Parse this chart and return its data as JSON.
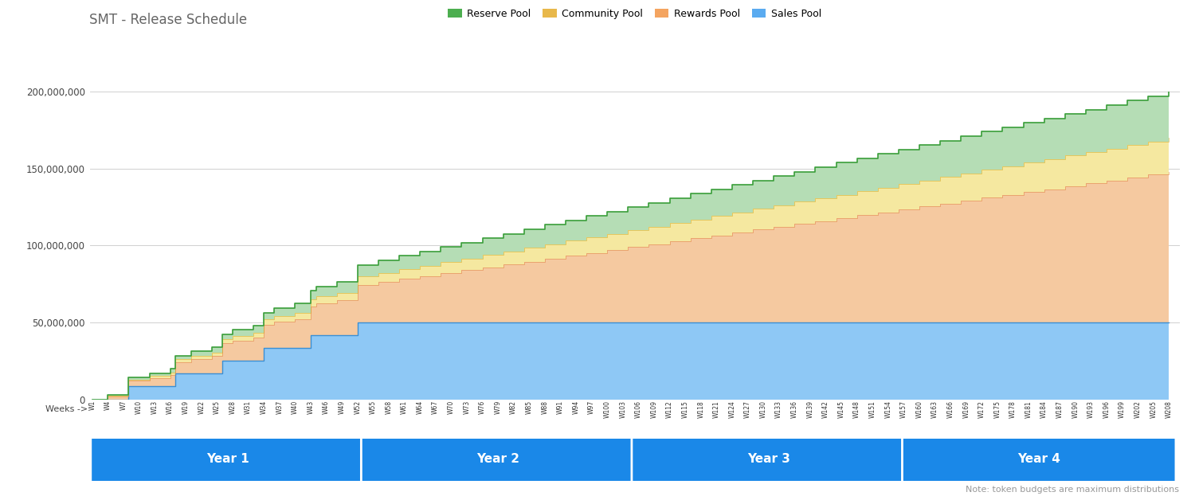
{
  "title": "SMT - Release Schedule",
  "title_fontsize": 12,
  "title_color": "#666666",
  "background_color": "#ffffff",
  "legend_labels": [
    "Reserve Pool",
    "Community Pool",
    "Rewards Pool",
    "Sales Pool"
  ],
  "legend_colors": [
    "#4cae4f",
    "#e8b84b",
    "#f4a460",
    "#5aabf0"
  ],
  "pool_fill_colors": {
    "reserve": "#b5ddb5",
    "community": "#f5e8a0",
    "rewards": "#f5c9a0",
    "sales": "#8ec8f5"
  },
  "pool_line_colors": {
    "reserve": "#3a9e3a",
    "community": "#d4a820",
    "rewards": "#e08040",
    "sales": "#3a8fd4"
  },
  "year_bar_color": "#1a88e8",
  "year_bar_text_color": "#ffffff",
  "note_text": "Note: token budgets are maximum distributions",
  "note_color": "#999999",
  "ylim": [
    0,
    200000000
  ],
  "yticks": [
    0,
    50000000,
    100000000,
    150000000,
    200000000
  ],
  "ytick_labels": [
    "0",
    "50,000,000",
    "100,000,000",
    "150,000,000",
    "200,000,000"
  ],
  "xlabel_weeks": "Weeks ->",
  "year_boundaries": [
    1,
    53,
    105,
    157,
    209
  ],
  "year_labels": [
    "Year 1",
    "Year 2",
    "Year 3",
    "Year 4"
  ],
  "sales_total": 50000000,
  "sales_year1_releases": 6,
  "rewards_total": 98000000,
  "rewards_releases": 52,
  "community_total": 22000000,
  "community_releases": 52,
  "reserve_total": 30000000,
  "reserve_releases": 52,
  "n_weeks": 208
}
